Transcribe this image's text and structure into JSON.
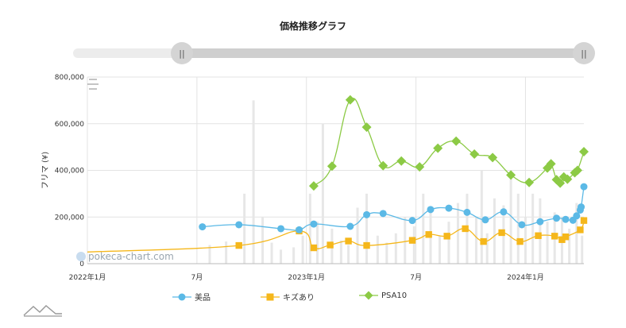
{
  "chart_data": {
    "type": "line",
    "title": "価格推移グラフ",
    "ylabel": "フリマ (¥)",
    "xlabel": "",
    "ylim": [
      0,
      800000
    ],
    "y_ticks": [
      0,
      200000,
      400000,
      600000,
      800000
    ],
    "y_tick_labels": [
      "0",
      "200,000",
      "400,000",
      "600,000",
      "800,000"
    ],
    "x_ticks": [
      {
        "t": 0,
        "label": "2022年1月"
      },
      {
        "t": 6,
        "label": "7月"
      },
      {
        "t": 12,
        "label": "2023年1月"
      },
      {
        "t": 18,
        "label": "7月"
      },
      {
        "t": 24,
        "label": "2024年1月"
      }
    ],
    "x_range": [
      0,
      27.2
    ],
    "series": [
      {
        "name": "美品",
        "color": "#5bb9e6",
        "marker": "circle",
        "points": [
          [
            6.3,
            158000
          ],
          [
            8.3,
            167000
          ],
          [
            10.6,
            150000
          ],
          [
            11.6,
            145000
          ],
          [
            12.4,
            170000
          ],
          [
            14.4,
            160000
          ],
          [
            15.3,
            210000
          ],
          [
            16.2,
            215000
          ],
          [
            17.8,
            185000
          ],
          [
            18.8,
            232000
          ],
          [
            19.8,
            238000
          ],
          [
            20.8,
            220000
          ],
          [
            21.8,
            188000
          ],
          [
            22.8,
            222000
          ],
          [
            23.8,
            167000
          ],
          [
            24.8,
            180000
          ],
          [
            25.7,
            195000
          ],
          [
            26.2,
            190000
          ],
          [
            26.6,
            186000
          ],
          [
            26.8,
            205000
          ],
          [
            27.0,
            230000
          ],
          [
            27.05,
            243000
          ],
          [
            27.2,
            330000
          ]
        ]
      },
      {
        "name": "キズあり",
        "color": "#f5b71b",
        "marker": "square",
        "points": [
          [
            0,
            50000
          ],
          [
            8.3,
            78000
          ],
          [
            11.6,
            140000
          ],
          [
            12.4,
            68000
          ],
          [
            13.3,
            80000
          ],
          [
            14.3,
            97000
          ],
          [
            15.3,
            78000
          ],
          [
            17.8,
            100000
          ],
          [
            18.7,
            125000
          ],
          [
            19.7,
            118000
          ],
          [
            20.7,
            150000
          ],
          [
            21.7,
            95000
          ],
          [
            22.7,
            133000
          ],
          [
            23.7,
            95000
          ],
          [
            24.7,
            120000
          ],
          [
            25.6,
            118000
          ],
          [
            26.0,
            103000
          ],
          [
            26.2,
            115000
          ],
          [
            27.0,
            145000
          ],
          [
            27.2,
            185000
          ]
        ]
      },
      {
        "name": "PSA10",
        "color": "#8cca45",
        "marker": "diamond",
        "points": [
          [
            12.4,
            333000
          ],
          [
            13.4,
            418000
          ],
          [
            14.4,
            702000
          ],
          [
            15.3,
            585000
          ],
          [
            16.2,
            420000
          ],
          [
            17.2,
            440000
          ],
          [
            18.2,
            415000
          ],
          [
            19.2,
            495000
          ],
          [
            20.2,
            525000
          ],
          [
            21.2,
            470000
          ],
          [
            22.2,
            455000
          ],
          [
            23.2,
            380000
          ],
          [
            24.2,
            348000
          ],
          [
            25.2,
            410000
          ],
          [
            25.4,
            428000
          ],
          [
            25.7,
            360000
          ],
          [
            25.9,
            345000
          ],
          [
            26.1,
            372000
          ],
          [
            26.3,
            362000
          ],
          [
            26.7,
            390000
          ],
          [
            26.85,
            400000
          ],
          [
            27.2,
            480000
          ]
        ]
      }
    ],
    "volume_bars": [
      [
        6.7,
        80000
      ],
      [
        7.6,
        95000
      ],
      [
        8.6,
        300000
      ],
      [
        9.1,
        700000
      ],
      [
        9.6,
        200000
      ],
      [
        10.1,
        90000
      ],
      [
        10.6,
        60000
      ],
      [
        11.3,
        70000
      ],
      [
        11.8,
        120000
      ],
      [
        12.2,
        300000
      ],
      [
        12.6,
        180000
      ],
      [
        12.9,
        600000
      ],
      [
        13.4,
        150000
      ],
      [
        13.9,
        100000
      ],
      [
        14.3,
        80000
      ],
      [
        14.8,
        240000
      ],
      [
        15.3,
        300000
      ],
      [
        15.9,
        120000
      ],
      [
        16.4,
        90000
      ],
      [
        16.9,
        130000
      ],
      [
        17.4,
        200000
      ],
      [
        17.9,
        160000
      ],
      [
        18.4,
        300000
      ],
      [
        18.8,
        220000
      ],
      [
        19.3,
        120000
      ],
      [
        19.8,
        180000
      ],
      [
        20.3,
        260000
      ],
      [
        20.8,
        300000
      ],
      [
        21.3,
        200000
      ],
      [
        21.6,
        400000
      ],
      [
        21.9,
        130000
      ],
      [
        22.3,
        280000
      ],
      [
        22.8,
        250000
      ],
      [
        23.2,
        400000
      ],
      [
        23.6,
        300000
      ],
      [
        24.0,
        200000
      ],
      [
        24.4,
        300000
      ],
      [
        24.8,
        280000
      ],
      [
        25.2,
        180000
      ],
      [
        25.6,
        220000
      ],
      [
        26.0,
        200000
      ],
      [
        26.4,
        150000
      ],
      [
        26.8,
        260000
      ],
      [
        27.1,
        120000
      ]
    ]
  },
  "watermark": "pokeca-chart.com",
  "range_handle_label": "||"
}
